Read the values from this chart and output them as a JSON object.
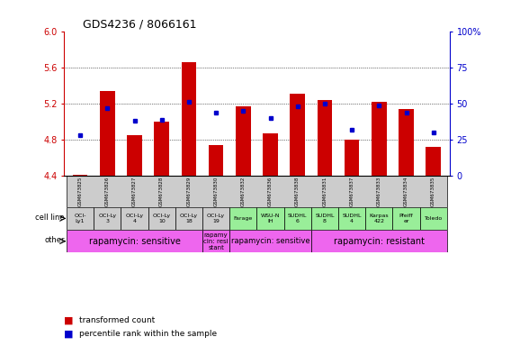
{
  "title": "GDS4236 / 8066161",
  "samples": [
    "GSM673825",
    "GSM673826",
    "GSM673827",
    "GSM673828",
    "GSM673829",
    "GSM673830",
    "GSM673832",
    "GSM673836",
    "GSM673838",
    "GSM673831",
    "GSM673837",
    "GSM673833",
    "GSM673834",
    "GSM673835"
  ],
  "transformed_count": [
    4.41,
    5.34,
    4.85,
    5.0,
    5.66,
    4.74,
    5.17,
    4.87,
    5.31,
    5.24,
    4.8,
    5.22,
    5.14,
    4.72
  ],
  "percentile_rank": [
    28,
    47,
    38,
    39,
    51,
    44,
    45,
    40,
    48,
    50,
    32,
    49,
    44,
    30
  ],
  "cell_line": [
    "OCI-\nLy1",
    "OCI-Ly\n3",
    "OCI-Ly\n4",
    "OCI-Ly\n10",
    "OCI-Ly\n18",
    "OCI-Ly\n19",
    "Farage",
    "WSU-N\nIH",
    "SUDHL\n6",
    "SUDHL\n8",
    "SUDHL\n4",
    "Karpas\n422",
    "Pfeiff\ner",
    "Toledo"
  ],
  "cell_line_bg": [
    "#cccccc",
    "#cccccc",
    "#cccccc",
    "#cccccc",
    "#cccccc",
    "#cccccc",
    "#99ee99",
    "#99ee99",
    "#99ee99",
    "#99ee99",
    "#99ee99",
    "#99ee99",
    "#99ee99",
    "#99ee99"
  ],
  "other_groups": [
    {
      "label": "rapamycin: sensitive",
      "start": 0,
      "end": 5,
      "color": "#ee66ee",
      "fontsize": 7
    },
    {
      "label": "rapamy\ncin: resi\nstant",
      "start": 5,
      "end": 6,
      "color": "#ee66ee",
      "fontsize": 5
    },
    {
      "label": "rapamycin: sensitive",
      "start": 6,
      "end": 9,
      "color": "#ee66ee",
      "fontsize": 6
    },
    {
      "label": "rapamycin: resistant",
      "start": 9,
      "end": 14,
      "color": "#ee66ee",
      "fontsize": 7
    }
  ],
  "bar_color": "#cc0000",
  "dot_color": "#0000cc",
  "ylim": [
    4.4,
    6.0
  ],
  "y2lim": [
    0,
    100
  ],
  "yticks": [
    4.4,
    4.8,
    5.2,
    5.6,
    6.0
  ],
  "y2ticks": [
    0,
    25,
    50,
    75,
    100
  ],
  "ylabel_color": "#cc0000",
  "y2label_color": "#0000cc",
  "base_value": 4.4
}
